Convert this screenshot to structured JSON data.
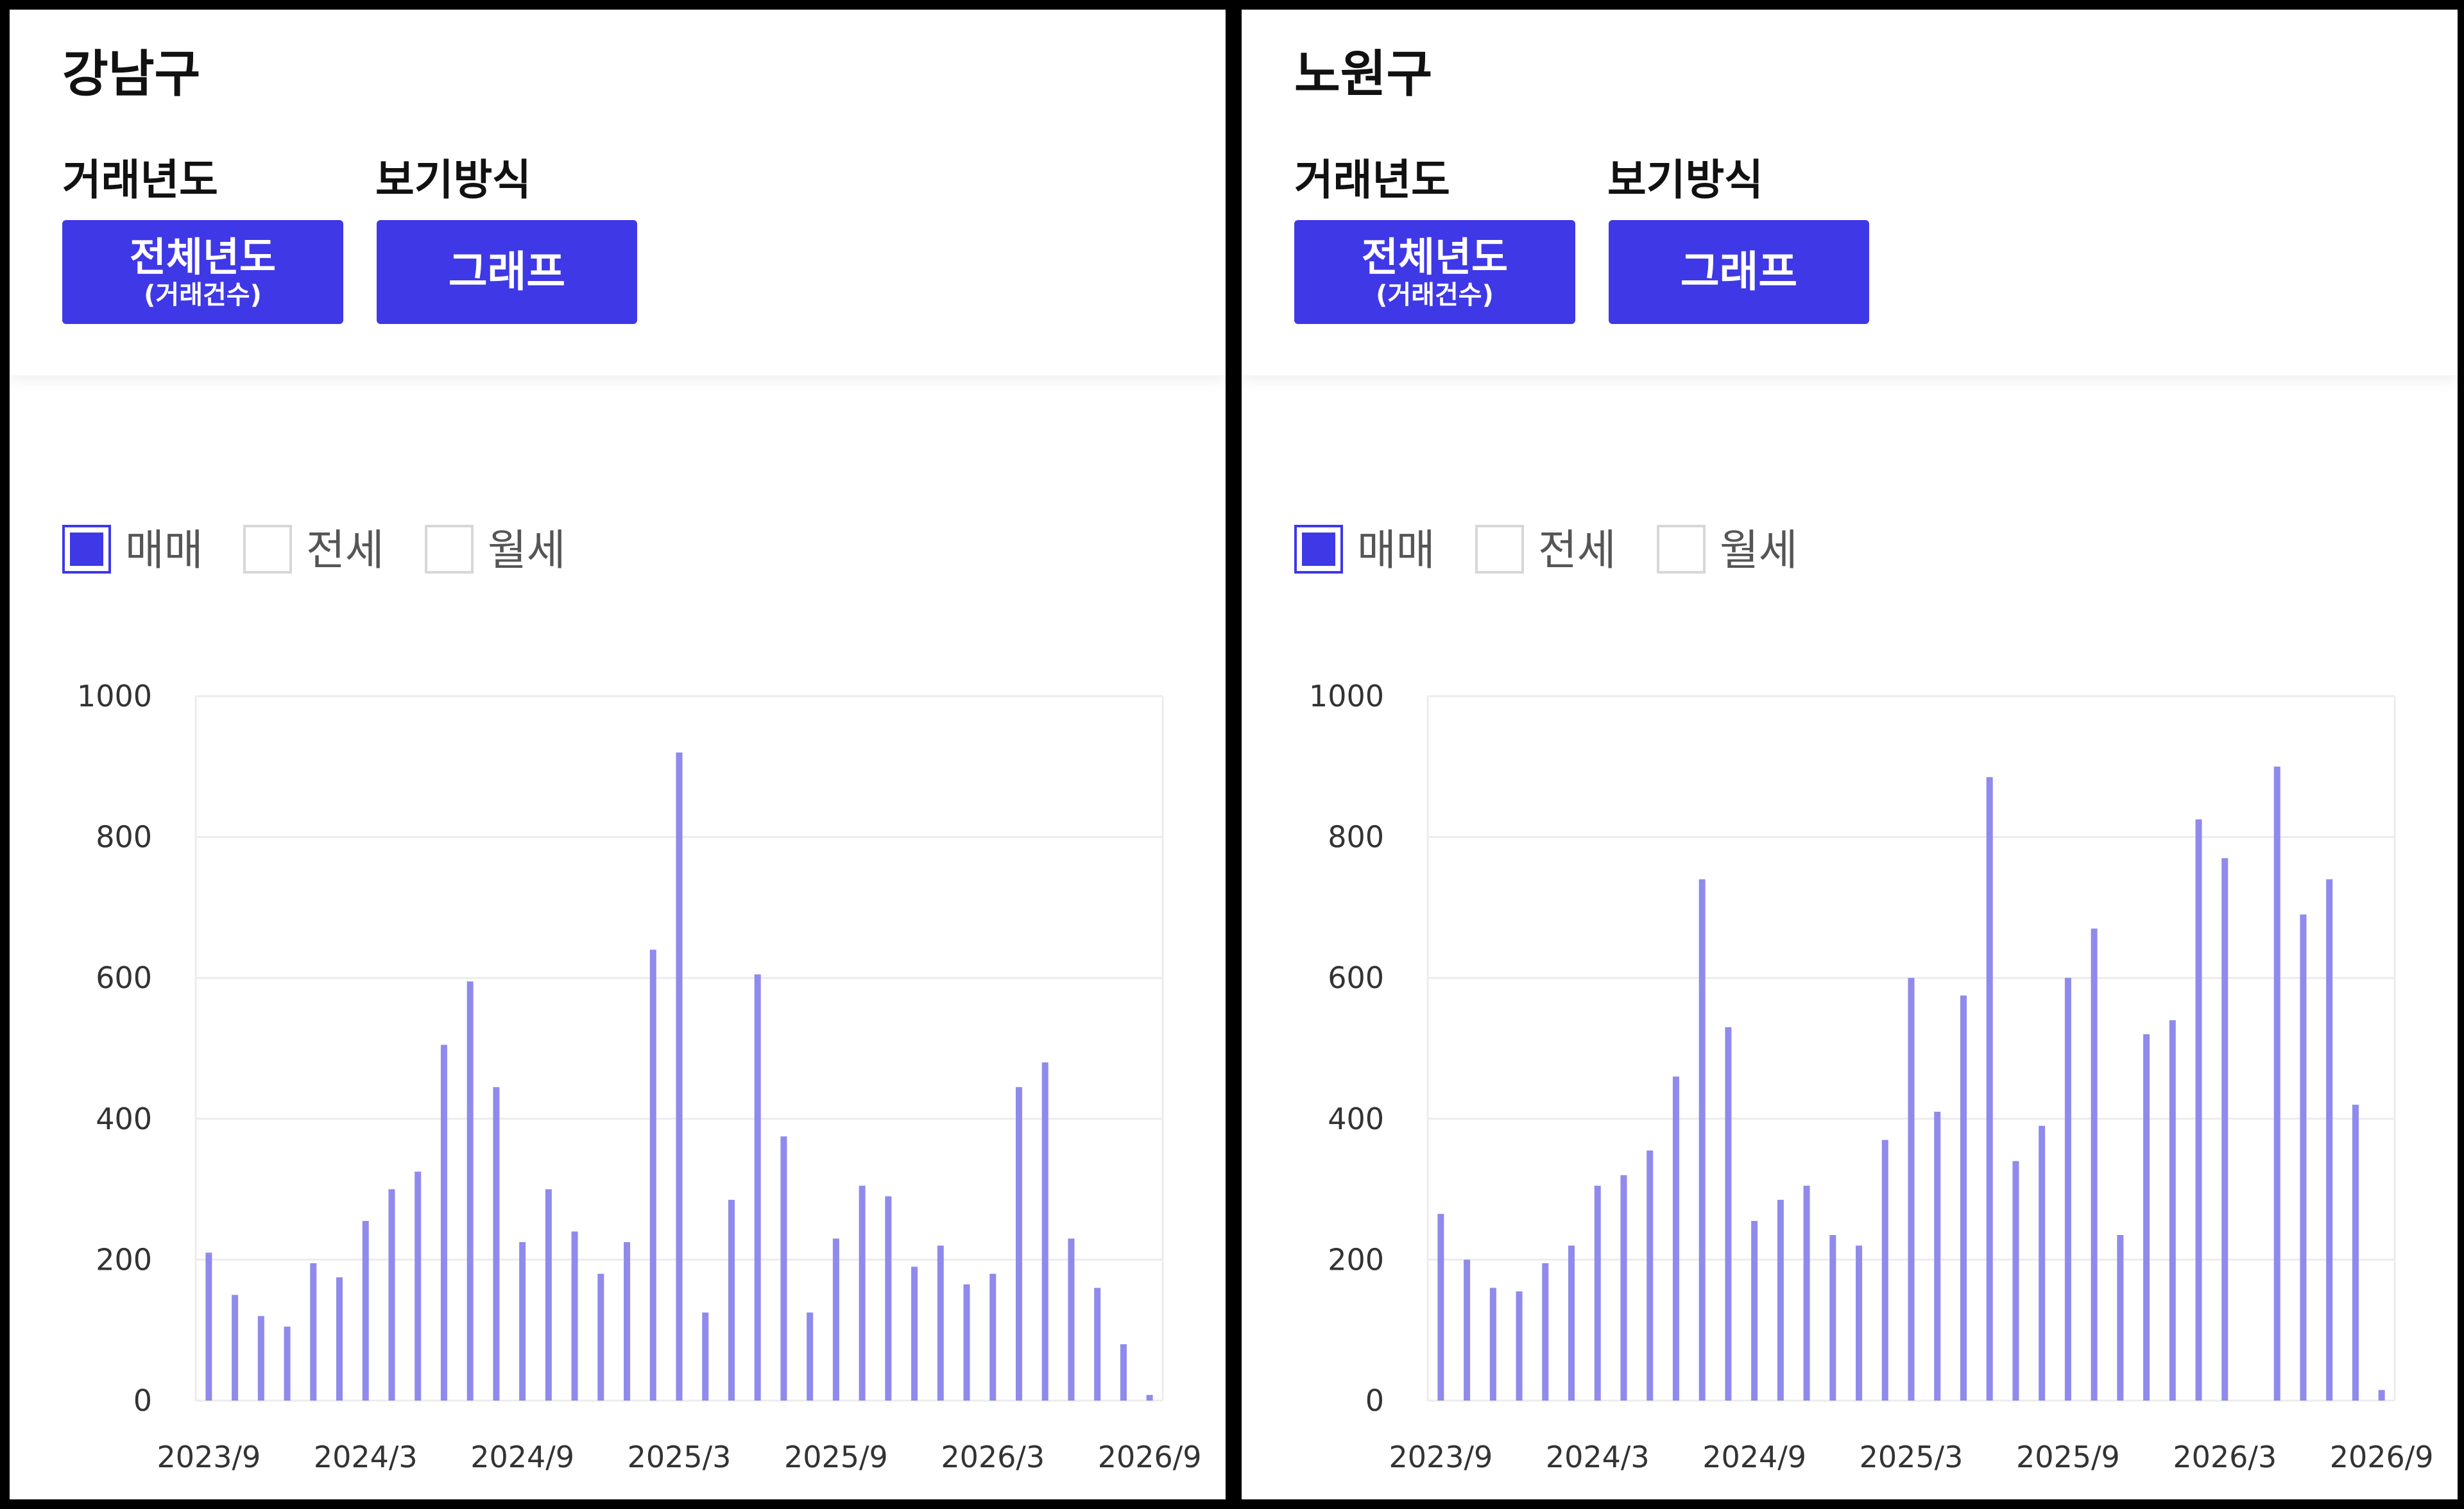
{
  "colors": {
    "accent": "#3f38e6",
    "bar": "#8f8aec"
  },
  "panels": [
    {
      "district": "강남구",
      "labels": {
        "year": "거래년도",
        "view": "보기방식"
      },
      "buttons": {
        "year_main": "전체년도",
        "year_sub": "(거래건수)",
        "view": "그래프"
      },
      "legend": [
        {
          "label": "매매",
          "checked": true
        },
        {
          "label": "전세",
          "checked": false
        },
        {
          "label": "월세",
          "checked": false
        }
      ]
    },
    {
      "district": "노원구",
      "labels": {
        "year": "거래년도",
        "view": "보기방식"
      },
      "buttons": {
        "year_main": "전체년도",
        "year_sub": "(거래건수)",
        "view": "그래프"
      },
      "legend": [
        {
          "label": "매매",
          "checked": true
        },
        {
          "label": "전세",
          "checked": false
        },
        {
          "label": "월세",
          "checked": false
        }
      ]
    }
  ],
  "chart_data": [
    {
      "type": "bar",
      "title": "강남구",
      "series": [
        {
          "name": "매매",
          "color": "#8f8aec",
          "values": [
            210,
            150,
            120,
            105,
            195,
            175,
            255,
            300,
            325,
            505,
            595,
            445,
            225,
            300,
            240,
            180,
            225,
            640,
            920,
            125,
            285,
            605,
            375,
            125,
            230,
            305,
            290,
            190,
            220,
            165,
            180,
            445,
            480,
            230,
            160,
            80,
            8
          ]
        }
      ],
      "x_tick_labels": [
        "2023/9",
        "2024/3",
        "2024/9",
        "2025/3",
        "2025/9",
        "2026/3",
        "2026/9"
      ],
      "x_tick_index": [
        0,
        6,
        12,
        18,
        24,
        30,
        36
      ],
      "yticks": [
        0,
        200,
        400,
        600,
        800,
        1000
      ],
      "ylim": [
        0,
        1000
      ],
      "grid": true
    },
    {
      "type": "bar",
      "title": "노원구",
      "series": [
        {
          "name": "매매",
          "color": "#8f8aec",
          "values": [
            265,
            200,
            160,
            155,
            195,
            220,
            305,
            320,
            355,
            460,
            740,
            530,
            255,
            285,
            305,
            235,
            220,
            370,
            600,
            410,
            575,
            885,
            340,
            390,
            600,
            670,
            235,
            520,
            540,
            825,
            770,
            0,
            900,
            690,
            740,
            420,
            15
          ]
        }
      ],
      "x_tick_labels": [
        "2023/9",
        "2024/3",
        "2024/9",
        "2025/3",
        "2025/9",
        "2026/3",
        "2026/9"
      ],
      "x_tick_index": [
        0,
        6,
        12,
        18,
        24,
        30,
        36
      ],
      "yticks": [
        0,
        200,
        400,
        600,
        800,
        1000
      ],
      "ylim": [
        0,
        1000
      ],
      "grid": true
    }
  ]
}
